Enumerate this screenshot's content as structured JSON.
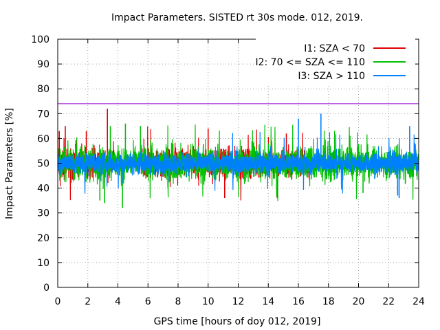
{
  "chart_data": {
    "type": "line",
    "title": "Impact Parameters. SISTED rt 30s mode. 012, 2019.",
    "xlabel": "GPS time [hours of doy 012, 2019]",
    "ylabel": "Impact Parameters [%]",
    "xlim": [
      0,
      24
    ],
    "ylim": [
      0,
      100
    ],
    "x_ticks": [
      0,
      2,
      4,
      6,
      8,
      10,
      12,
      14,
      16,
      18,
      20,
      22,
      24
    ],
    "y_ticks": [
      0,
      10,
      20,
      30,
      40,
      50,
      60,
      70,
      80,
      90,
      100
    ],
    "grid": true,
    "legend_position": "top-right",
    "reference_line": {
      "y": 74,
      "color": "#9400d3"
    },
    "series": [
      {
        "name": "I1: SZA < 70",
        "color": "#e00000",
        "coverage_hours": [
          [
            0,
            3.8
          ],
          [
            5.5,
            16.8
          ]
        ],
        "typical_range": [
          43,
          57
        ],
        "extremes": [
          {
            "x": 0.1,
            "y": 63
          },
          {
            "x": 0.5,
            "y": 65
          },
          {
            "x": 1.9,
            "y": 63
          },
          {
            "x": 3.3,
            "y": 72
          },
          {
            "x": 10,
            "y": 64
          },
          {
            "x": 11.1,
            "y": 36
          },
          {
            "x": 14.6,
            "y": 36
          },
          {
            "x": 15.2,
            "y": 62
          }
        ]
      },
      {
        "name": "I2: 70 <= SZA <= 110",
        "color": "#00c000",
        "coverage_hours": [
          [
            0,
            24
          ]
        ],
        "typical_range": [
          42,
          58
        ],
        "extremes": [
          {
            "x": 2.8,
            "y": 35
          },
          {
            "x": 3.1,
            "y": 34
          },
          {
            "x": 3.5,
            "y": 65
          },
          {
            "x": 4.3,
            "y": 32
          },
          {
            "x": 4.5,
            "y": 66
          },
          {
            "x": 5.5,
            "y": 65
          },
          {
            "x": 20.3,
            "y": 38
          }
        ]
      },
      {
        "name": "I3: SZA > 110",
        "color": "#0080ff",
        "coverage_hours": [
          [
            0,
            24
          ]
        ],
        "typical_range": [
          45,
          55
        ],
        "extremes": [
          {
            "x": 17.5,
            "y": 70
          },
          {
            "x": 16,
            "y": 68
          },
          {
            "x": 23.4,
            "y": 65
          },
          {
            "x": 22.7,
            "y": 36
          },
          {
            "x": 22.6,
            "y": 37
          }
        ]
      }
    ]
  }
}
